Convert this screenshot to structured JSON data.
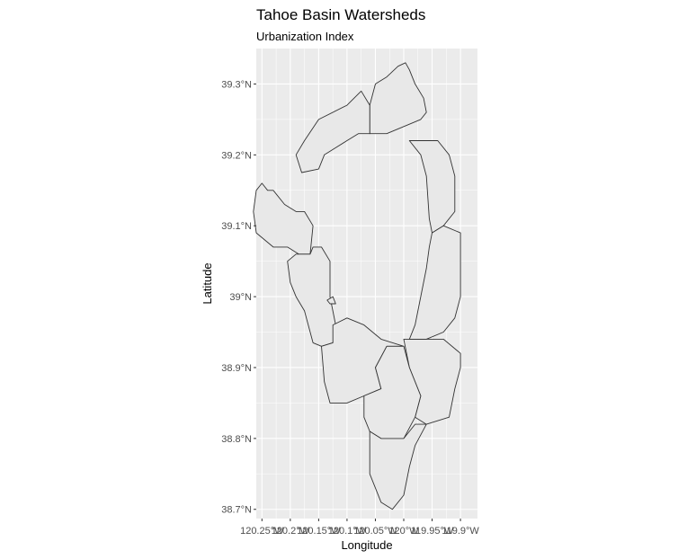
{
  "chart_data": {
    "type": "map",
    "title": "Tahoe Basin Watersheds",
    "subtitle": "Urbanization Index",
    "xlabel": "Longitude",
    "ylabel": "Latitude",
    "xlim": [
      -120.26,
      -119.87
    ],
    "ylim": [
      38.687,
      39.35
    ],
    "x_ticks": [
      {
        "value": -120.25,
        "label": "120.25°W"
      },
      {
        "value": -120.2,
        "label": "120.2°W"
      },
      {
        "value": -120.15,
        "label": "120.15°W"
      },
      {
        "value": -120.1,
        "label": "120.1°W"
      },
      {
        "value": -120.05,
        "label": "120.05°W"
      },
      {
        "value": -120.0,
        "label": "120°W"
      },
      {
        "value": -119.95,
        "label": "119.95°W"
      },
      {
        "value": -119.9,
        "label": "119.9°W"
      }
    ],
    "y_ticks": [
      {
        "value": 38.7,
        "label": "38.7°N"
      },
      {
        "value": 38.8,
        "label": "38.8°N"
      },
      {
        "value": 38.9,
        "label": "38.9°N"
      },
      {
        "value": 39.0,
        "label": "39°N"
      },
      {
        "value": 39.1,
        "label": "39.1°N"
      },
      {
        "value": 39.2,
        "label": "39.2°N"
      },
      {
        "value": 39.3,
        "label": "39.3°N"
      }
    ],
    "grid": true,
    "panel_color": "#ebebeb",
    "grid_color": "#ffffff",
    "fill_color": "#e8e8e8",
    "stroke_color": "#333333",
    "watersheds": [
      {
        "coords": [
          [
            -120.06,
            39.23
          ],
          [
            -120.03,
            39.23
          ],
          [
            -119.97,
            39.25
          ],
          [
            -119.96,
            39.26
          ],
          [
            -119.965,
            39.28
          ],
          [
            -119.98,
            39.3
          ],
          [
            -119.99,
            39.32
          ],
          [
            -119.997,
            39.33
          ],
          [
            -120.01,
            39.325
          ],
          [
            -120.03,
            39.31
          ],
          [
            -120.05,
            39.3
          ],
          [
            -120.06,
            39.27
          ],
          [
            -120.06,
            39.23
          ]
        ]
      },
      {
        "coords": [
          [
            -120.1,
            39.22
          ],
          [
            -120.12,
            39.21
          ],
          [
            -120.14,
            39.2
          ],
          [
            -120.15,
            39.18
          ],
          [
            -120.18,
            39.175
          ],
          [
            -120.19,
            39.2
          ],
          [
            -120.175,
            39.22
          ],
          [
            -120.15,
            39.25
          ],
          [
            -120.1,
            39.27
          ],
          [
            -120.075,
            39.29
          ],
          [
            -120.06,
            39.27
          ],
          [
            -120.06,
            39.23
          ],
          [
            -120.08,
            39.23
          ],
          [
            -120.1,
            39.22
          ]
        ]
      },
      {
        "coords": [
          [
            -120.25,
            39.16
          ],
          [
            -120.24,
            39.15
          ],
          [
            -120.23,
            39.15
          ],
          [
            -120.21,
            39.13
          ],
          [
            -120.19,
            39.12
          ],
          [
            -120.175,
            39.12
          ],
          [
            -120.16,
            39.1
          ],
          [
            -120.165,
            39.06
          ],
          [
            -120.185,
            39.06
          ],
          [
            -120.205,
            39.07
          ],
          [
            -120.23,
            39.07
          ],
          [
            -120.26,
            39.09
          ],
          [
            -120.265,
            39.12
          ],
          [
            -120.26,
            39.15
          ],
          [
            -120.25,
            39.16
          ]
        ]
      },
      {
        "coords": [
          [
            -120.165,
            39.06
          ],
          [
            -120.16,
            39.07
          ],
          [
            -120.145,
            39.07
          ],
          [
            -120.13,
            39.05
          ],
          [
            -120.13,
            39.0
          ],
          [
            -120.12,
            38.96
          ],
          [
            -120.125,
            38.935
          ],
          [
            -120.145,
            38.93
          ],
          [
            -120.16,
            38.935
          ],
          [
            -120.175,
            38.98
          ],
          [
            -120.19,
            39.0
          ],
          [
            -120.2,
            39.02
          ],
          [
            -120.205,
            39.05
          ],
          [
            -120.19,
            39.06
          ],
          [
            -120.165,
            39.06
          ]
        ]
      },
      {
        "coords": [
          [
            -120.125,
            38.96
          ],
          [
            -120.1,
            38.97
          ],
          [
            -120.07,
            38.96
          ],
          [
            -120.04,
            38.94
          ],
          [
            -120.0,
            38.93
          ],
          [
            -120.03,
            38.93
          ],
          [
            -120.05,
            38.9
          ],
          [
            -120.04,
            38.87
          ],
          [
            -120.07,
            38.86
          ],
          [
            -120.1,
            38.85
          ],
          [
            -120.13,
            38.85
          ],
          [
            -120.14,
            38.88
          ],
          [
            -120.145,
            38.93
          ],
          [
            -120.125,
            38.935
          ],
          [
            -120.125,
            38.96
          ]
        ]
      },
      {
        "coords": [
          [
            -120.0,
            38.94
          ],
          [
            -119.99,
            38.9
          ],
          [
            -119.97,
            38.86
          ],
          [
            -119.98,
            38.83
          ],
          [
            -119.96,
            38.82
          ],
          [
            -119.92,
            38.83
          ],
          [
            -119.91,
            38.87
          ],
          [
            -119.9,
            38.9
          ],
          [
            -119.9,
            38.92
          ],
          [
            -119.93,
            38.94
          ],
          [
            -119.96,
            38.94
          ],
          [
            -119.99,
            38.94
          ],
          [
            -120.0,
            38.94
          ]
        ]
      },
      {
        "coords": [
          [
            -120.0,
            38.93
          ],
          [
            -120.03,
            38.93
          ],
          [
            -120.05,
            38.9
          ],
          [
            -120.04,
            38.87
          ],
          [
            -120.07,
            38.86
          ],
          [
            -120.07,
            38.83
          ],
          [
            -120.06,
            38.81
          ],
          [
            -120.04,
            38.8
          ],
          [
            -120.0,
            38.8
          ],
          [
            -119.98,
            38.83
          ],
          [
            -119.97,
            38.86
          ],
          [
            -119.99,
            38.9
          ],
          [
            -120.0,
            38.93
          ]
        ]
      },
      {
        "coords": [
          [
            -120.06,
            38.81
          ],
          [
            -120.04,
            38.8
          ],
          [
            -120.0,
            38.8
          ],
          [
            -119.98,
            38.82
          ],
          [
            -119.96,
            38.82
          ],
          [
            -119.98,
            38.79
          ],
          [
            -119.99,
            38.76
          ],
          [
            -120.0,
            38.72
          ],
          [
            -120.02,
            38.7
          ],
          [
            -120.04,
            38.71
          ],
          [
            -120.05,
            38.73
          ],
          [
            -120.06,
            38.75
          ],
          [
            -120.06,
            38.78
          ],
          [
            -120.06,
            38.81
          ]
        ]
      },
      {
        "coords": [
          [
            -119.99,
            39.22
          ],
          [
            -119.97,
            39.22
          ],
          [
            -119.94,
            39.22
          ],
          [
            -119.92,
            39.2
          ],
          [
            -119.91,
            39.17
          ],
          [
            -119.91,
            39.12
          ],
          [
            -119.93,
            39.1
          ],
          [
            -119.95,
            39.09
          ],
          [
            -119.955,
            39.11
          ],
          [
            -119.96,
            39.17
          ],
          [
            -119.97,
            39.2
          ],
          [
            -119.99,
            39.22
          ]
        ]
      },
      {
        "coords": [
          [
            -119.95,
            39.09
          ],
          [
            -119.93,
            39.1
          ],
          [
            -119.9,
            39.09
          ],
          [
            -119.9,
            39.06
          ],
          [
            -119.9,
            39.0
          ],
          [
            -119.91,
            38.97
          ],
          [
            -119.93,
            38.95
          ],
          [
            -119.96,
            38.94
          ],
          [
            -119.99,
            38.94
          ],
          [
            -119.98,
            38.96
          ],
          [
            -119.97,
            39.0
          ],
          [
            -119.96,
            39.04
          ],
          [
            -119.955,
            39.07
          ],
          [
            -119.95,
            39.09
          ]
        ]
      },
      {
        "coords": [
          [
            -120.135,
            38.995
          ],
          [
            -120.125,
            39.0
          ],
          [
            -120.12,
            38.99
          ],
          [
            -120.13,
            38.99
          ],
          [
            -120.135,
            38.995
          ]
        ]
      }
    ]
  }
}
